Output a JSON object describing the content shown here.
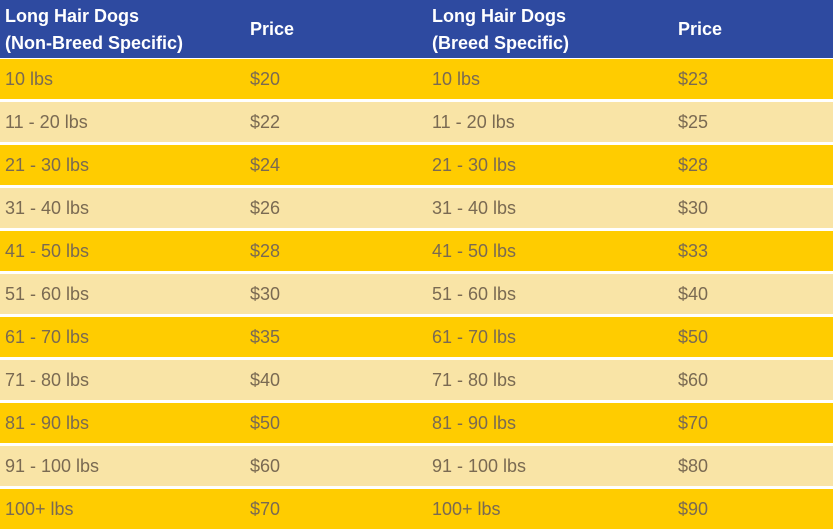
{
  "header": {
    "col1_line1": "Long Hair Dogs",
    "col1_line2": "(Non-Breed Specific)",
    "col2": "Price",
    "col3_line1": "Long Hair Dogs",
    "col3_line2": "(Breed Specific)",
    "col4": "Price"
  },
  "colors": {
    "header_bg": "#2e4aa0",
    "row_dark": "#ffcc00",
    "row_light": "#f9e4a6",
    "text": "#7a6a52"
  },
  "rows": [
    {
      "weight_nb": "10 lbs",
      "price_nb": "$20",
      "weight_b": "10 lbs",
      "price_b": "$23"
    },
    {
      "weight_nb": "11 - 20 lbs",
      "price_nb": "$22",
      "weight_b": "11 - 20 lbs",
      "price_b": "$25"
    },
    {
      "weight_nb": "21 - 30 lbs",
      "price_nb": "$24",
      "weight_b": "21 - 30 lbs",
      "price_b": "$28"
    },
    {
      "weight_nb": "31 - 40 lbs",
      "price_nb": "$26",
      "weight_b": "31 - 40 lbs",
      "price_b": "$30"
    },
    {
      "weight_nb": "41 - 50 lbs",
      "price_nb": "$28",
      "weight_b": "41 - 50 lbs",
      "price_b": "$33"
    },
    {
      "weight_nb": "51 - 60 lbs",
      "price_nb": "$30",
      "weight_b": "51 - 60 lbs",
      "price_b": "$40"
    },
    {
      "weight_nb": "61 - 70 lbs",
      "price_nb": "$35",
      "weight_b": "61 - 70 lbs",
      "price_b": "$50"
    },
    {
      "weight_nb": "71 - 80 lbs",
      "price_nb": "$40",
      "weight_b": "71 - 80 lbs",
      "price_b": "$60"
    },
    {
      "weight_nb": "81 - 90 lbs",
      "price_nb": "$50",
      "weight_b": "81 - 90 lbs",
      "price_b": "$70"
    },
    {
      "weight_nb": "91 - 100 lbs",
      "price_nb": "$60",
      "weight_b": "91 - 100 lbs",
      "price_b": "$80"
    },
    {
      "weight_nb": "100+ lbs",
      "price_nb": "$70",
      "weight_b": "100+ lbs",
      "price_b": "$90"
    }
  ]
}
